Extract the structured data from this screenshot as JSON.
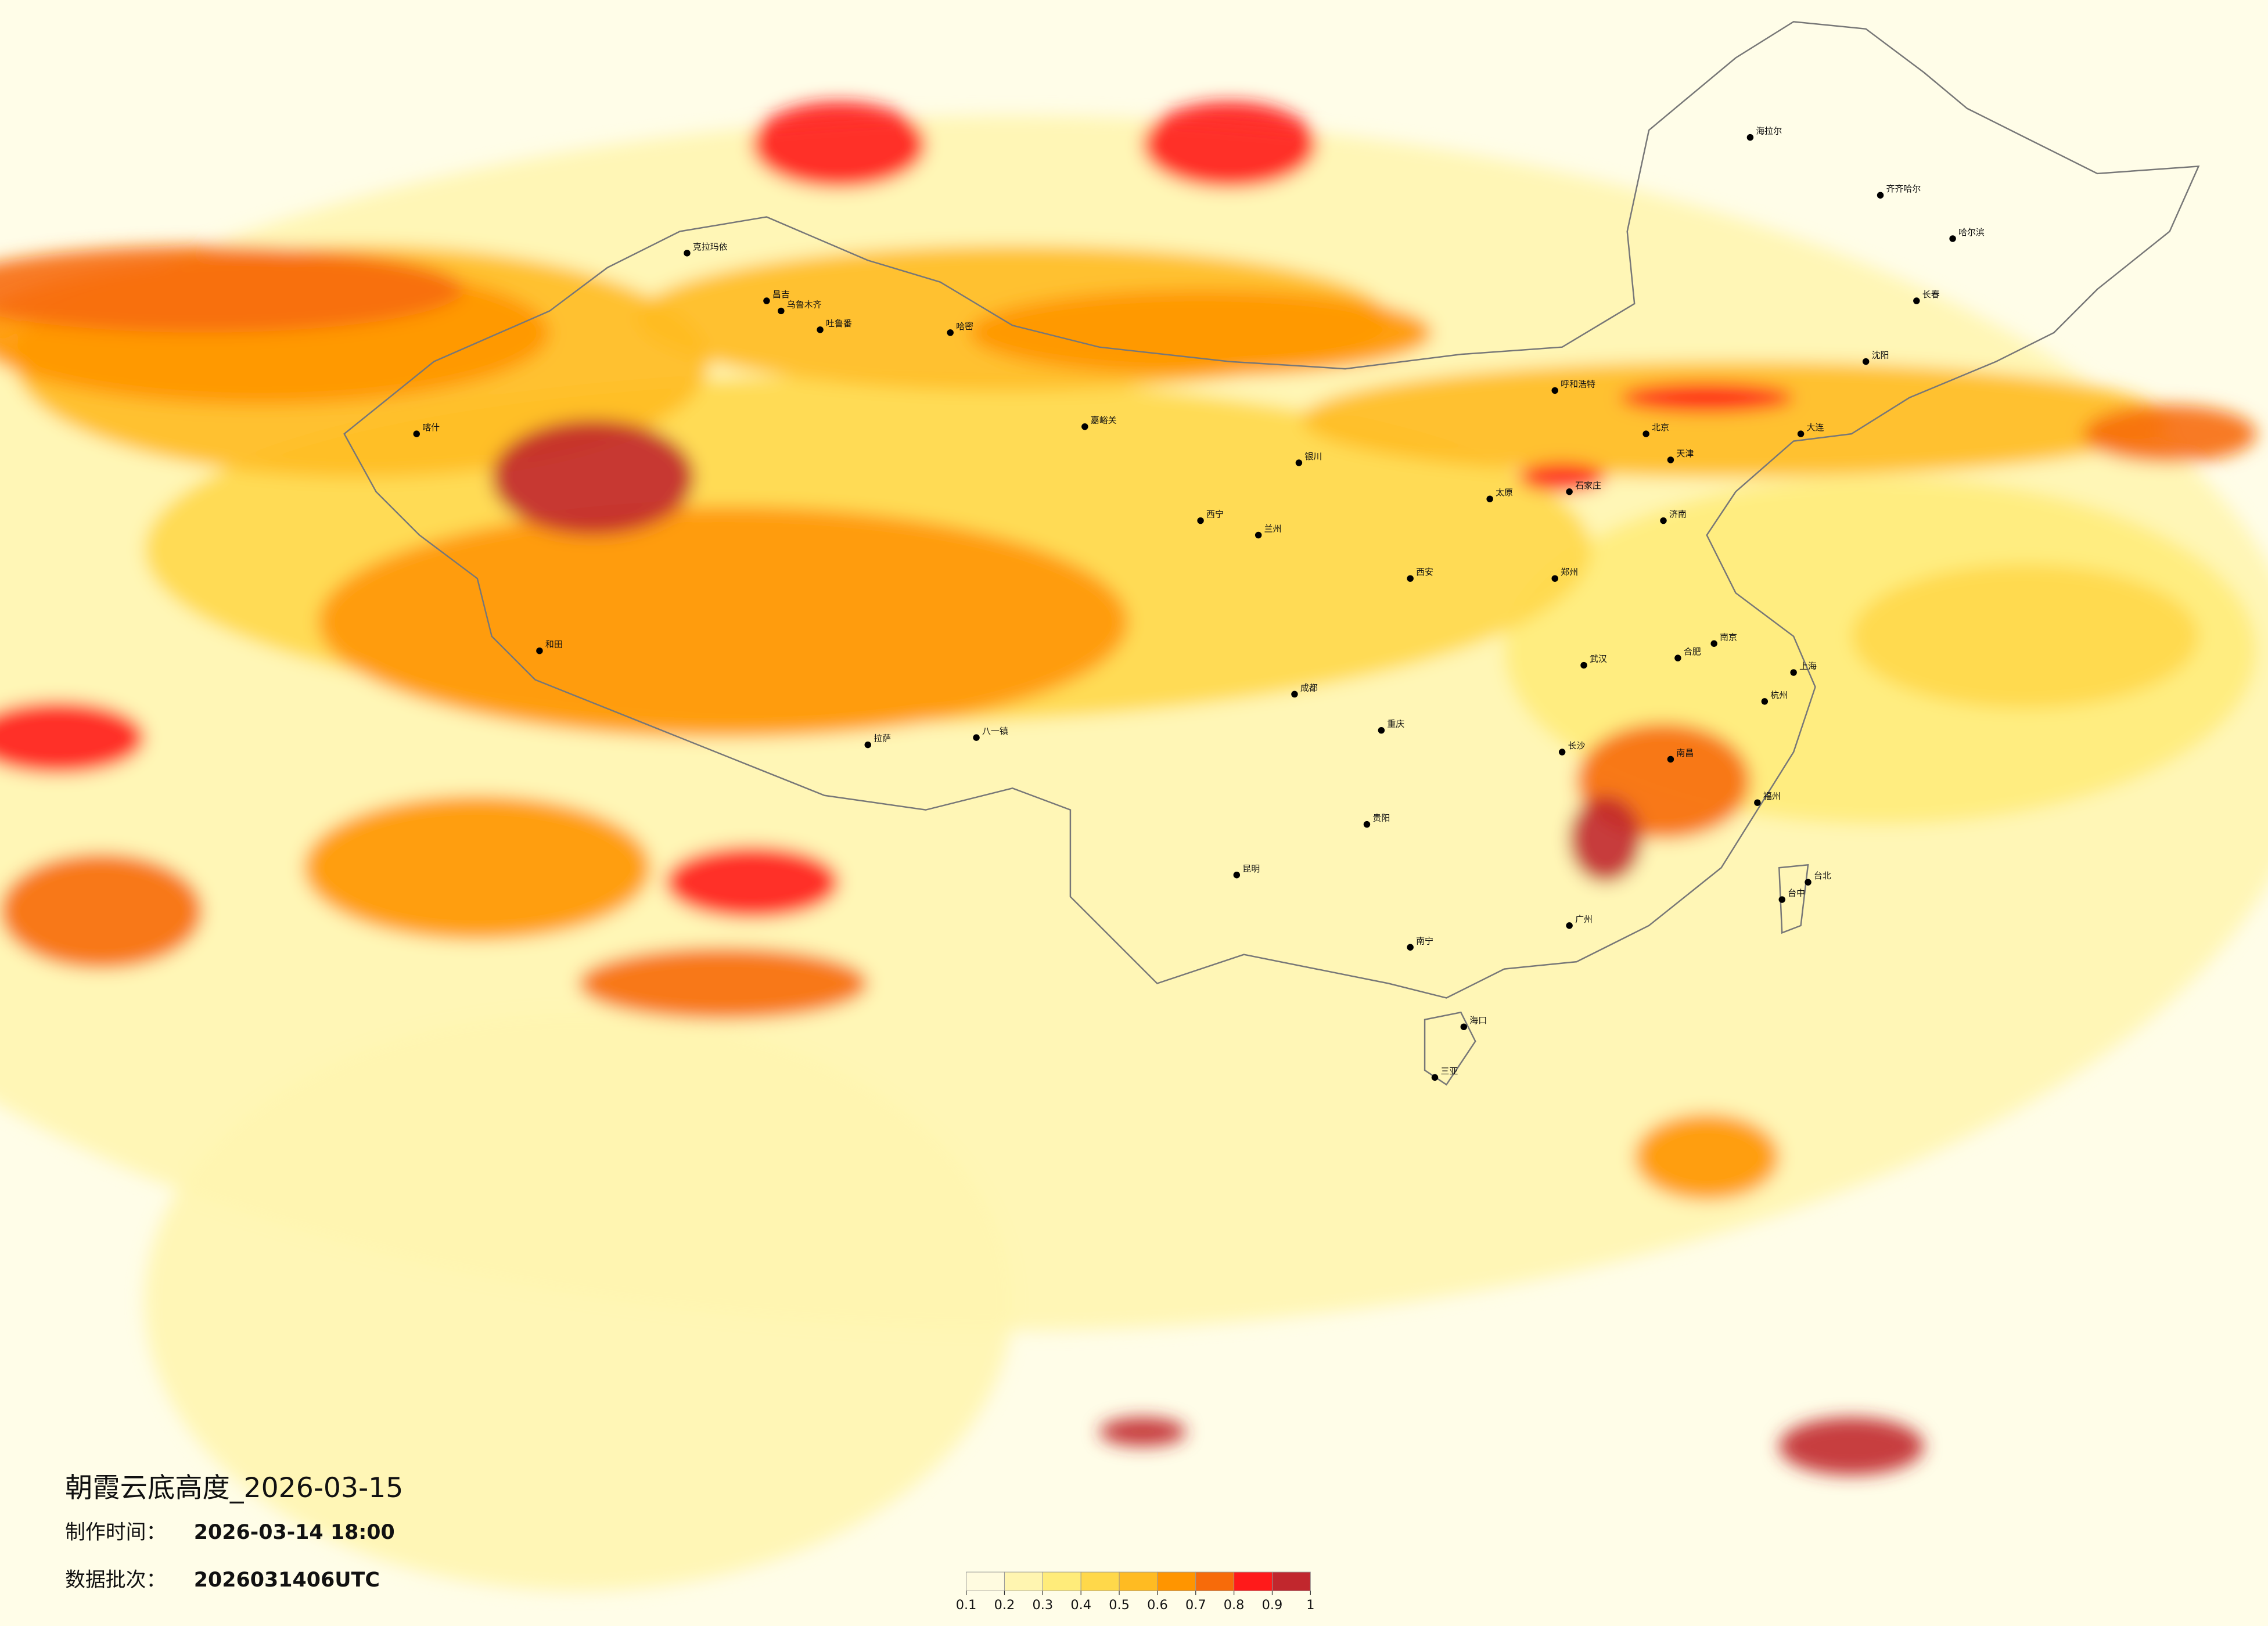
{
  "chart_data": {
    "type": "map",
    "title": "朝霞云底高度_2026-03-15",
    "made_label": "制作时间：",
    "made_time": "2026-03-14 18:00",
    "batch_label": "数据批次：",
    "batch": "2026031406UTC",
    "colorbar": {
      "ticks": [
        0.1,
        0.2,
        0.3,
        0.4,
        0.5,
        0.6,
        0.7,
        0.8,
        0.9,
        1
      ],
      "colors": [
        "#fffbe0",
        "#fff5b0",
        "#ffec7a",
        "#ffd84a",
        "#ffbb22",
        "#ff9500",
        "#f76b0a",
        "#ff1a1a",
        "#c1272d"
      ]
    },
    "cities": [
      "克拉玛依",
      "昌吉",
      "乌鲁木齐",
      "吐鲁番",
      "哈密",
      "喀什",
      "和田",
      "嘉峪关",
      "西宁",
      "兰州",
      "银川",
      "呼和浩特",
      "北京",
      "天津",
      "石家庄",
      "太原",
      "济南",
      "郑州",
      "西安",
      "成都",
      "重庆",
      "武汉",
      "长沙",
      "南京",
      "上海",
      "杭州",
      "福州",
      "台北",
      "台中",
      "广州",
      "南宁",
      "海口",
      "三亚",
      "昆明",
      "贵阳",
      "拉萨",
      "八一镇",
      "哈尔滨",
      "长春",
      "沈阳",
      "大连",
      "齐齐哈尔",
      "海拉尔",
      "南昌",
      "合肥"
    ]
  }
}
